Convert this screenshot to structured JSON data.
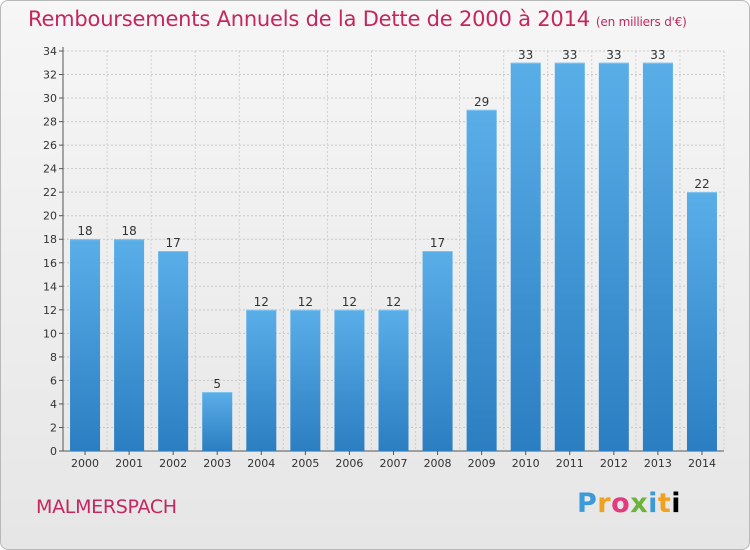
{
  "title": "Remboursements Annuels de la Dette de 2000 à 2014",
  "subtitle": "(en milliers d'€)",
  "commune": "MALMERSPACH",
  "logo": [
    "P",
    "r",
    "o",
    "x",
    "i",
    "t",
    "i"
  ],
  "colors": {
    "bar_top": "#5aaee8",
    "bar_bottom": "#2b7ec1",
    "title": "#c5265e",
    "axis": "#333333",
    "grid": "#c8c8c8"
  },
  "chart_data": {
    "type": "bar",
    "categories": [
      "2000",
      "2001",
      "2002",
      "2003",
      "2004",
      "2005",
      "2006",
      "2007",
      "2008",
      "2009",
      "2010",
      "2011",
      "2012",
      "2013",
      "2014"
    ],
    "values": [
      18,
      18,
      17,
      5,
      12,
      12,
      12,
      12,
      17,
      29,
      33,
      33,
      33,
      33,
      22
    ],
    "yticks": [
      0,
      2,
      4,
      6,
      8,
      10,
      12,
      14,
      16,
      18,
      20,
      22,
      24,
      26,
      28,
      30,
      32,
      34
    ],
    "ylim": [
      0,
      34
    ],
    "grid": true,
    "data_labels": true
  }
}
